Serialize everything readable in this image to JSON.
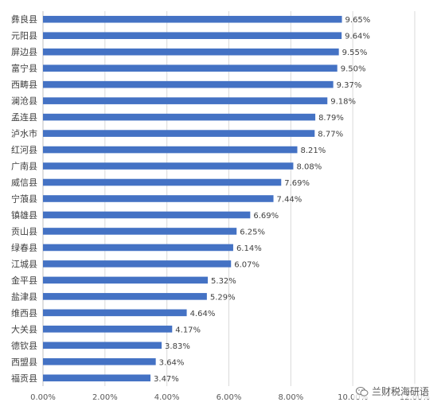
{
  "chart_data": {
    "type": "bar",
    "orientation": "horizontal",
    "title": "",
    "xlabel": "",
    "ylabel": "",
    "categories": [
      "彝良县",
      "元阳县",
      "屏边县",
      "富宁县",
      "西畴县",
      "澜沧县",
      "孟连县",
      "泸水市",
      "红河县",
      "广南县",
      "威信县",
      "宁蒗县",
      "镇雄县",
      "贡山县",
      "绿春县",
      "江城县",
      "金平县",
      "盐津县",
      "维西县",
      "大关县",
      "德钦县",
      "西盟县",
      "福贡县"
    ],
    "values": [
      9.65,
      9.64,
      9.55,
      9.5,
      9.37,
      9.18,
      8.79,
      8.77,
      8.21,
      8.08,
      7.69,
      7.44,
      6.69,
      6.25,
      6.14,
      6.07,
      5.32,
      5.29,
      4.64,
      4.17,
      3.83,
      3.64,
      3.47
    ],
    "value_labels": [
      "9.65%",
      "9.64%",
      "9.55%",
      "9.50%",
      "9.37%",
      "9.18%",
      "8.79%",
      "8.77%",
      "8.21%",
      "8.08%",
      "7.69%",
      "7.44%",
      "6.69%",
      "6.25%",
      "6.14%",
      "6.07%",
      "5.32%",
      "5.29%",
      "4.64%",
      "4.17%",
      "3.83%",
      "3.64%",
      "3.47%"
    ],
    "xlim": [
      0,
      12
    ],
    "x_ticks": [
      0,
      2,
      4,
      6,
      8,
      10,
      12
    ],
    "x_tick_labels": [
      "0.00%",
      "2.00%",
      "4.00%",
      "6.00%",
      "8.00%",
      "10.00%",
      "12.00%"
    ],
    "grid": true,
    "bar_color": "#4472C4",
    "grid_color": "#D9D9D9"
  },
  "watermark": {
    "text": "兰财税海研语",
    "icon": "wechat-icon"
  }
}
